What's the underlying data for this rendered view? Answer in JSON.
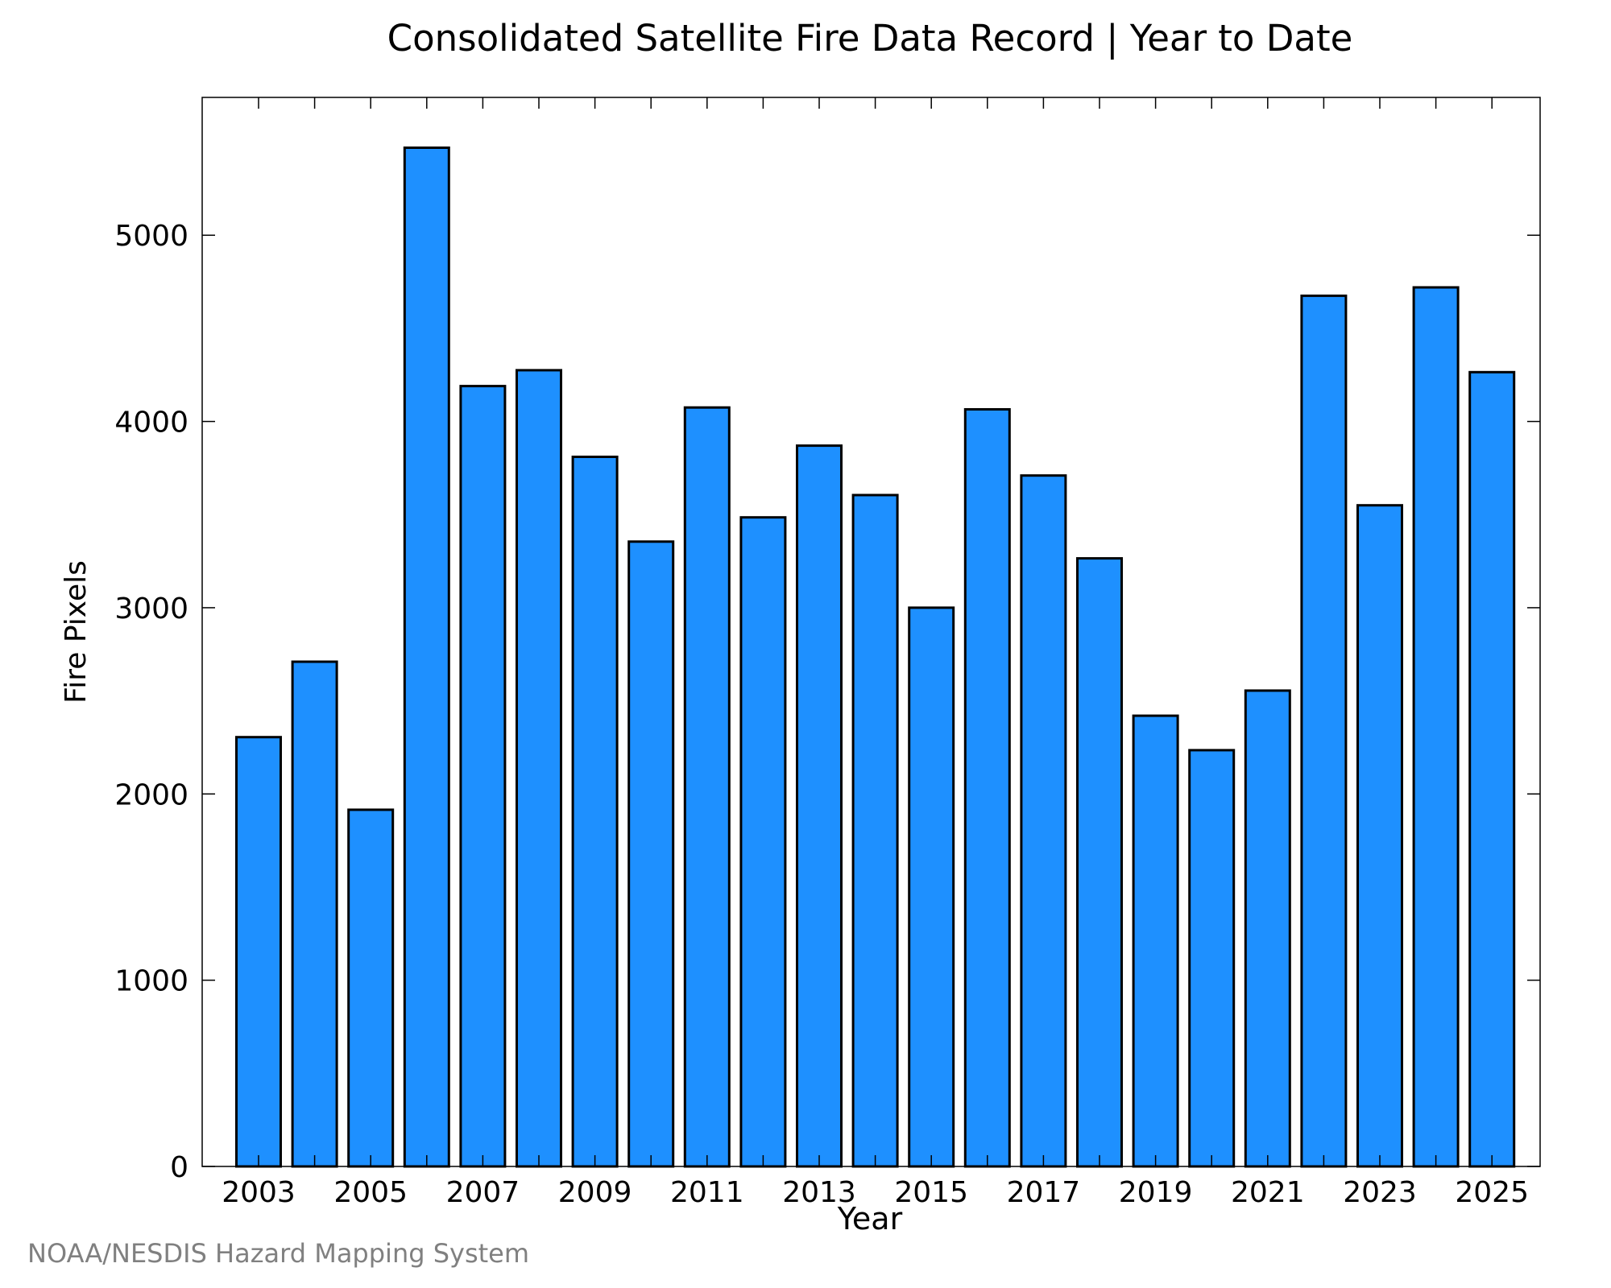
{
  "chart_data": {
    "type": "bar",
    "title": "Consolidated Satellite Fire Data Record | Year to Date",
    "xlabel": "Year",
    "ylabel": "Fire Pixels",
    "categories": [
      "2003",
      "2004",
      "2005",
      "2006",
      "2007",
      "2008",
      "2009",
      "2010",
      "2011",
      "2012",
      "2013",
      "2014",
      "2015",
      "2016",
      "2017",
      "2018",
      "2019",
      "2020",
      "2021",
      "2022",
      "2023",
      "2024",
      "2025"
    ],
    "values": [
      2305,
      2710,
      1915,
      5470,
      4190,
      4275,
      3810,
      3355,
      4075,
      3485,
      3870,
      3605,
      3000,
      4065,
      3710,
      3265,
      2420,
      2235,
      2555,
      4675,
      3550,
      4720,
      4265
    ],
    "x_tick_labels": [
      "2003",
      "2005",
      "2007",
      "2009",
      "2011",
      "2013",
      "2015",
      "2017",
      "2019",
      "2021",
      "2023",
      "2025"
    ],
    "y_ticks": [
      0,
      1000,
      2000,
      3000,
      4000,
      5000
    ],
    "ylim": [
      0,
      5740
    ],
    "grid": false,
    "bar_color": "#1e90ff",
    "edge_color": "#000000"
  },
  "footer": {
    "credit": "NOAA/NESDIS Hazard Mapping System"
  }
}
